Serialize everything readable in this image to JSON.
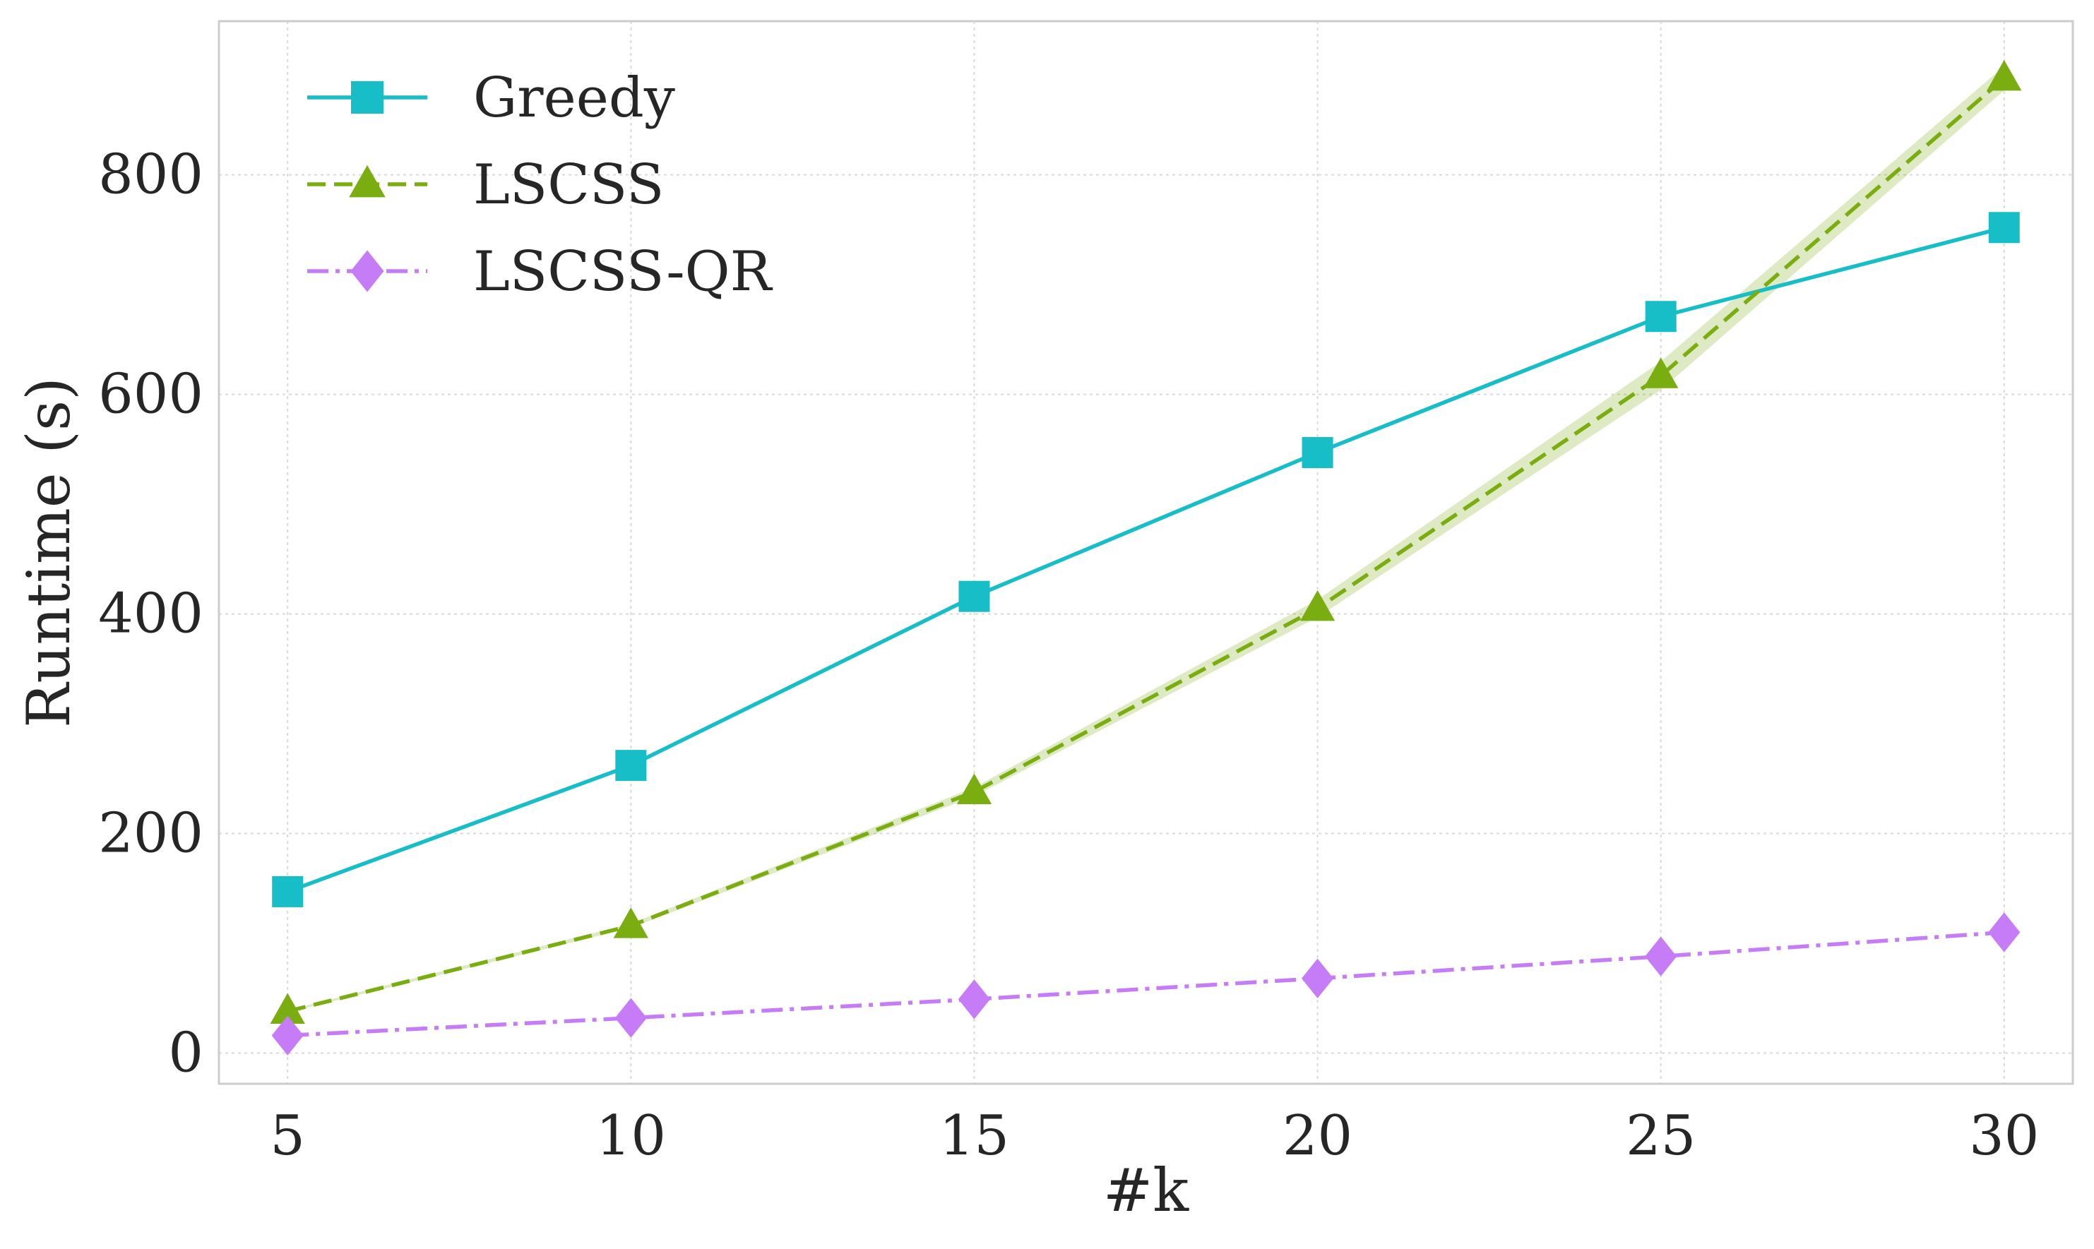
{
  "chart_data": {
    "type": "line",
    "title": "",
    "xlabel": "#k",
    "ylabel": "Runtime (s)",
    "x": [
      5,
      10,
      15,
      20,
      25,
      30
    ],
    "xlim": [
      4,
      31
    ],
    "ylim": [
      -28,
      940
    ],
    "xticks": [
      5,
      10,
      15,
      20,
      25,
      30
    ],
    "yticks": [
      0,
      200,
      400,
      600,
      800
    ],
    "grid": true,
    "legend_position": "top-left",
    "series": [
      {
        "name": "Greedy",
        "values": [
          147,
          262,
          416,
          547,
          671,
          752
        ],
        "color": "#17bec8",
        "line_style": "solid",
        "marker": "square"
      },
      {
        "name": "LSCSS",
        "values": [
          38,
          116,
          238,
          405,
          617,
          888
        ],
        "band_low": [
          37,
          114,
          234,
          397,
          604,
          877
        ],
        "band_high": [
          39,
          118,
          242,
          413,
          630,
          899
        ],
        "color": "#7aad0f",
        "line_style": "dashed",
        "marker": "triangle"
      },
      {
        "name": "LSCSS-QR",
        "values": [
          16,
          32,
          49,
          68,
          88,
          110
        ],
        "color": "#c57cf6",
        "line_style": "dashdot",
        "marker": "diamond"
      }
    ]
  }
}
